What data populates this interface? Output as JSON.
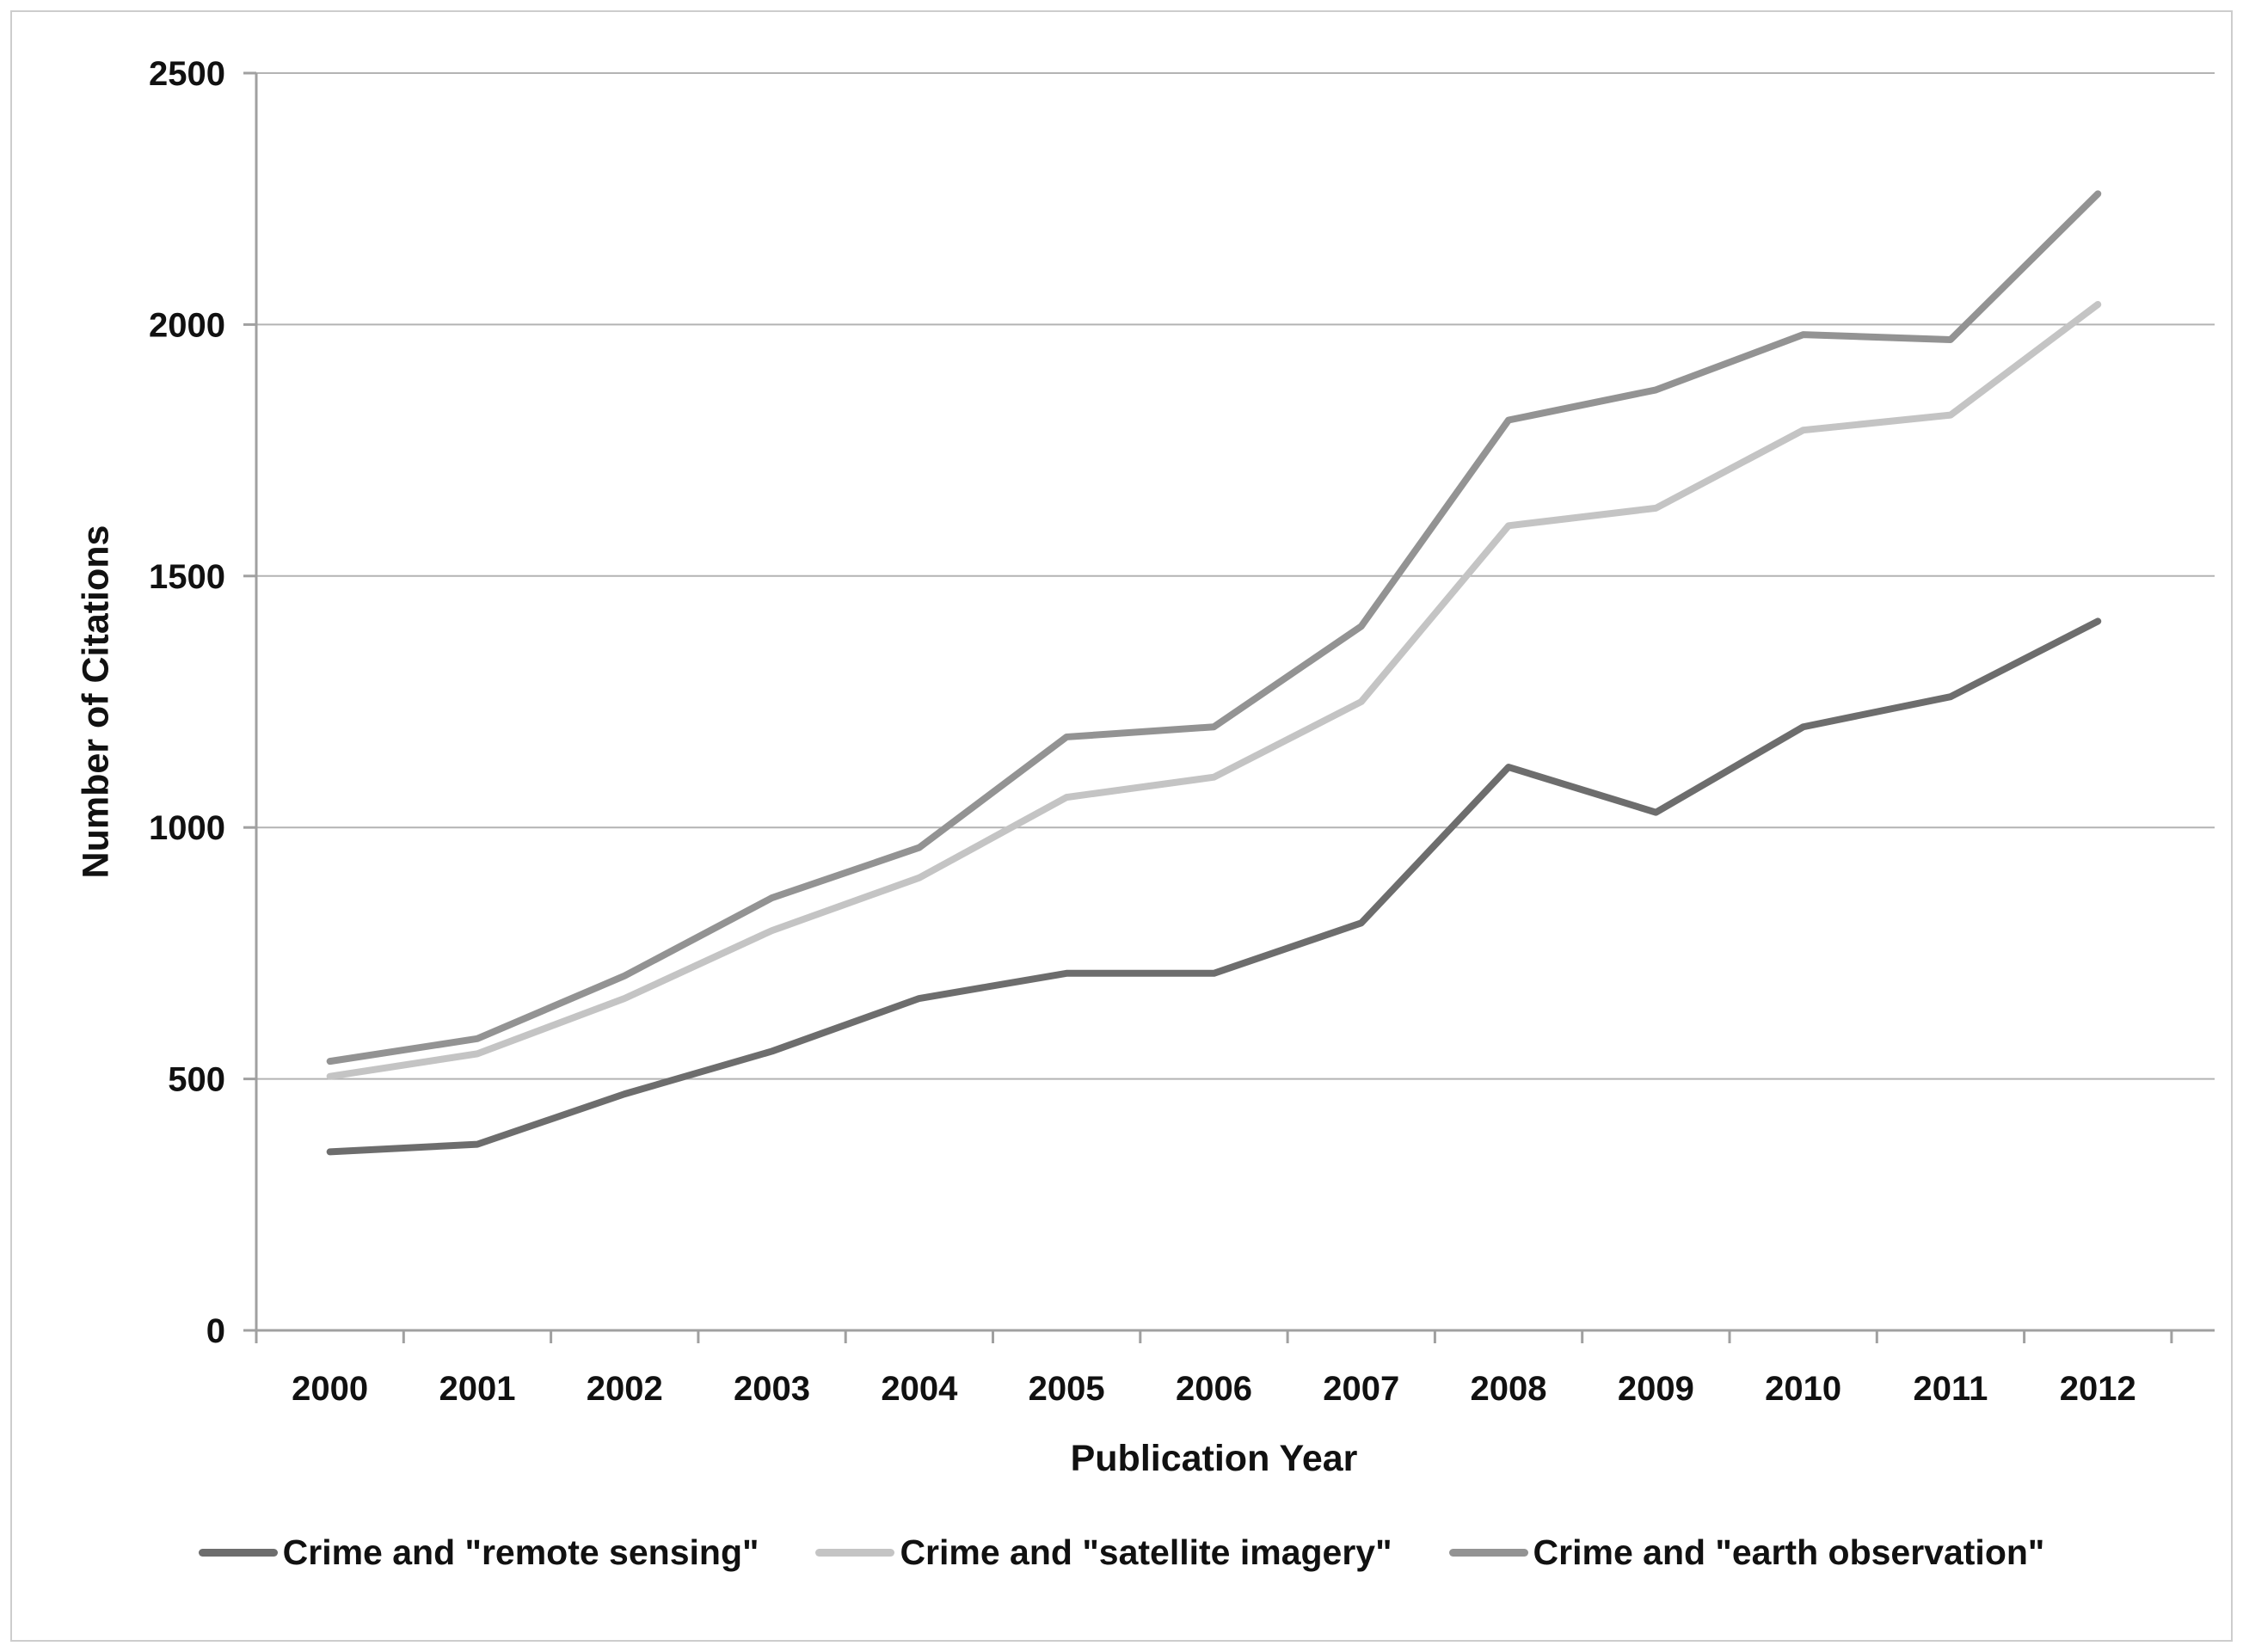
{
  "figure": {
    "background": "#ffffff",
    "border_color": "#cdcdcd"
  },
  "chart_data": {
    "type": "line",
    "title": "",
    "xlabel": "Publication Year",
    "ylabel": "Number of Citations",
    "categories": [
      "2000",
      "2001",
      "2002",
      "2003",
      "2004",
      "2005",
      "2006",
      "2007",
      "2008",
      "2009",
      "2010",
      "2011",
      "2012"
    ],
    "ylim": [
      0,
      2500
    ],
    "yticks": [
      0,
      500,
      1000,
      1500,
      2000,
      2500
    ],
    "grid": "horizontal",
    "legend_position": "bottom-center",
    "colors": {
      "grid": "#b3b3b3",
      "axis": "#a0a0a0",
      "text": "#111111"
    },
    "series": [
      {
        "name": "Crime and \"remote sensing\"",
        "color": "#6d6d6d",
        "values": [
          355,
          370,
          470,
          555,
          660,
          710,
          710,
          810,
          1120,
          1030,
          1200,
          1260,
          1410
        ]
      },
      {
        "name": "Crime and \"satellite imagery\"",
        "color": "#c4c4c4",
        "values": [
          505,
          550,
          660,
          795,
          900,
          1060,
          1100,
          1250,
          1600,
          1635,
          1790,
          1820,
          2040
        ]
      },
      {
        "name": "Crime and \"earth observation\"",
        "color": "#939393",
        "values": [
          535,
          580,
          705,
          860,
          960,
          1180,
          1200,
          1400,
          1810,
          1870,
          1980,
          1970,
          2260
        ]
      }
    ]
  }
}
